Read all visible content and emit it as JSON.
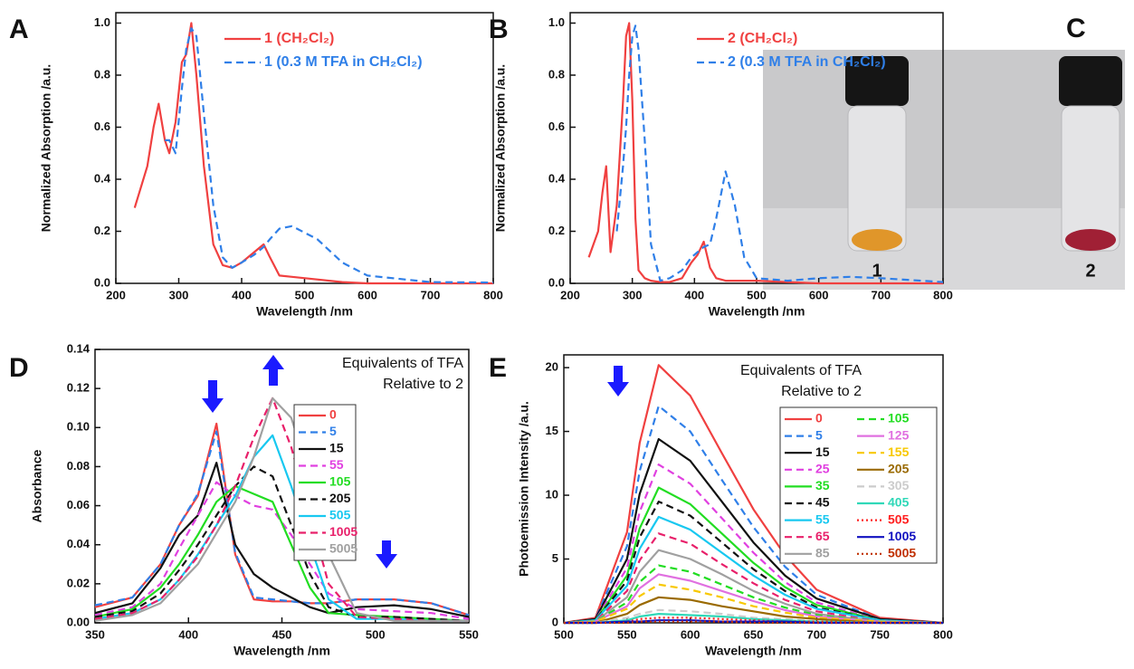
{
  "chart_data": [
    {
      "type": "line",
      "panel": "A",
      "x_label": "Wavelength /nm",
      "y_label": "Normalized Absorption /a.u.",
      "xlim": [
        200,
        800
      ],
      "ylim": [
        0,
        1.04
      ],
      "xticks": [
        200,
        300,
        400,
        500,
        600,
        700,
        800
      ],
      "yticks": [
        {
          "value": 0,
          "label": "0.0"
        },
        0.2,
        0.4,
        0.6,
        0.8,
        {
          "value": 1,
          "label": "1.0"
        }
      ],
      "x": [
        230,
        250,
        260,
        268,
        278,
        285,
        295,
        305,
        312,
        320,
        328,
        340,
        355,
        370,
        385,
        400,
        420,
        435,
        445,
        460,
        480,
        520,
        560,
        600,
        700,
        800
      ],
      "series": [
        {
          "name": "1 (CH₂Cl₂)",
          "color": "#f04040",
          "style": "solid",
          "values": [
            0.29,
            0.45,
            0.6,
            0.69,
            0.55,
            0.5,
            0.62,
            0.85,
            0.88,
            1.0,
            0.8,
            0.45,
            0.15,
            0.07,
            0.06,
            0.08,
            0.12,
            0.15,
            0.1,
            0.03,
            0.025,
            0.015,
            0.005,
            0,
            0,
            0
          ]
        },
        {
          "name": "1 (0.3 M TFA in CH₂Cl₂)",
          "color": "#2f7fe8",
          "style": "dashed",
          "values": [
            null,
            null,
            null,
            null,
            0.55,
            0.55,
            0.5,
            0.75,
            0.9,
            0.98,
            0.95,
            0.65,
            0.3,
            0.1,
            0.06,
            0.08,
            0.11,
            0.14,
            0.17,
            0.21,
            0.22,
            0.17,
            0.08,
            0.03,
            0.005,
            0.003
          ]
        }
      ]
    },
    {
      "type": "line",
      "panel": "B",
      "x_label": "Wavelength /nm",
      "y_label": "Normalized Absorption /a.u.",
      "xlim": [
        200,
        800
      ],
      "ylim": [
        0,
        1.04
      ],
      "xticks": [
        200,
        300,
        400,
        500,
        600,
        700,
        800
      ],
      "yticks": [
        {
          "value": 0,
          "label": "0.0"
        },
        0.2,
        0.4,
        0.6,
        0.8,
        {
          "value": 1,
          "label": "1.0"
        }
      ],
      "x": [
        230,
        245,
        252,
        258,
        265,
        275,
        285,
        290,
        295,
        300,
        305,
        310,
        320,
        330,
        345,
        360,
        380,
        395,
        405,
        415,
        425,
        435,
        450,
        465,
        480,
        500,
        550,
        600,
        650,
        700,
        800
      ],
      "series": [
        {
          "name": "2 (CH₂Cl₂)",
          "color": "#f04040",
          "style": "solid",
          "values": [
            0.1,
            0.2,
            0.35,
            0.45,
            0.12,
            0.3,
            0.7,
            0.95,
            1.0,
            0.7,
            0.25,
            0.05,
            0.02,
            0.01,
            0.005,
            0.005,
            0.02,
            0.08,
            0.11,
            0.16,
            0.06,
            0.02,
            0.01,
            0.01,
            0.01,
            0.01,
            0.005,
            0,
            0,
            0,
            0
          ]
        },
        {
          "name": "2 (0.3 M TFA in CH₂Cl₂)",
          "color": "#2f7fe8",
          "style": "dashed",
          "values": [
            null,
            null,
            null,
            null,
            null,
            0.2,
            0.45,
            0.6,
            0.8,
            0.95,
            0.99,
            0.9,
            0.55,
            0.15,
            0.01,
            0.02,
            0.05,
            0.1,
            0.12,
            0.14,
            0.15,
            0.25,
            0.43,
            0.3,
            0.1,
            0.02,
            0.01,
            0.02,
            0.025,
            0.02,
            0.005
          ]
        }
      ]
    },
    {
      "type": "line",
      "panel": "D",
      "x_label": "Wavelength /nm",
      "y_label": "Absorbance",
      "legend_title": [
        "Equivalents of TFA",
        "Relative to 2"
      ],
      "xlim": [
        350,
        550
      ],
      "ylim": [
        0,
        0.14
      ],
      "xticks": [
        350,
        400,
        450,
        500,
        550
      ],
      "yticks": [
        {
          "value": 0,
          "label": "0.00"
        },
        {
          "value": 0.02,
          "label": "0.02"
        },
        {
          "value": 0.04,
          "label": "0.04"
        },
        {
          "value": 0.06,
          "label": "0.06"
        },
        {
          "value": 0.08,
          "label": "0.08"
        },
        {
          "value": 0.1,
          "label": "0.10"
        },
        {
          "value": 0.12,
          "label": "0.12"
        },
        {
          "value": 0.14,
          "label": "0.14"
        }
      ],
      "x": [
        350,
        370,
        385,
        395,
        405,
        415,
        425,
        435,
        445,
        455,
        465,
        475,
        490,
        510,
        530,
        550
      ],
      "series": [
        {
          "name": "0",
          "color": "#f04040",
          "style": "solid",
          "values": [
            0.008,
            0.013,
            0.03,
            0.05,
            0.065,
            0.102,
            0.035,
            0.012,
            0.011,
            0.011,
            0.01,
            0.01,
            0.012,
            0.012,
            0.01,
            0.004
          ]
        },
        {
          "name": "5",
          "color": "#2f7fe8",
          "style": "dashed",
          "values": [
            0.009,
            0.013,
            0.03,
            0.05,
            0.066,
            0.098,
            0.036,
            0.013,
            0.012,
            0.011,
            0.01,
            0.01,
            0.012,
            0.012,
            0.01,
            0.004
          ]
        },
        {
          "name": "15",
          "color": "#111111",
          "style": "solid",
          "values": [
            0.005,
            0.01,
            0.028,
            0.045,
            0.055,
            0.082,
            0.04,
            0.025,
            0.018,
            0.013,
            0.008,
            0.005,
            0.008,
            0.009,
            0.007,
            0.003
          ]
        },
        {
          "name": "55",
          "color": "#e040e0",
          "style": "dashed",
          "values": [
            0.004,
            0.008,
            0.02,
            0.038,
            0.055,
            0.072,
            0.065,
            0.06,
            0.058,
            0.045,
            0.03,
            0.015,
            0.007,
            0.006,
            0.005,
            0.002
          ]
        },
        {
          "name": "105",
          "color": "#22dd22",
          "style": "solid",
          "values": [
            0.003,
            0.007,
            0.018,
            0.03,
            0.045,
            0.062,
            0.07,
            0.066,
            0.062,
            0.04,
            0.018,
            0.005,
            0.004,
            0.003,
            0.002,
            0.001
          ]
        },
        {
          "name": "205",
          "color": "#111111",
          "style": "dashed",
          "values": [
            0.003,
            0.006,
            0.015,
            0.027,
            0.04,
            0.055,
            0.07,
            0.08,
            0.075,
            0.05,
            0.025,
            0.008,
            0.003,
            0.003,
            0.002,
            0.001
          ]
        },
        {
          "name": "505",
          "color": "#18c8f0",
          "style": "solid",
          "values": [
            0.002,
            0.005,
            0.012,
            0.022,
            0.035,
            0.05,
            0.065,
            0.085,
            0.096,
            0.07,
            0.04,
            0.012,
            0.002,
            0.002,
            0.001,
            0.001
          ]
        },
        {
          "name": "1005",
          "color": "#e8206a",
          "style": "dashed",
          "values": [
            0.002,
            0.005,
            0.012,
            0.022,
            0.034,
            0.05,
            0.07,
            0.095,
            0.115,
            0.09,
            0.055,
            0.02,
            0.003,
            0.002,
            0.001,
            0.001
          ]
        },
        {
          "name": "5005",
          "color": "#a0a0a0",
          "style": "solid",
          "values": [
            0.001,
            0.004,
            0.01,
            0.02,
            0.03,
            0.046,
            0.062,
            0.085,
            0.115,
            0.105,
            0.075,
            0.035,
            0.005,
            0.001,
            0.001,
            0.001
          ]
        }
      ]
    },
    {
      "type": "line",
      "panel": "E",
      "x_label": "Wavelength /nm",
      "y_label": "Photoemission Intensity /a.u.",
      "legend_title": [
        "Equivalents of TFA",
        "Relative to 2"
      ],
      "xlim": [
        500,
        800
      ],
      "ylim": [
        0,
        21
      ],
      "xticks": [
        500,
        550,
        600,
        650,
        700,
        750,
        800
      ],
      "yticks": [
        0,
        5,
        10,
        15,
        20
      ],
      "x": [
        500,
        525,
        550,
        560,
        575,
        600,
        625,
        650,
        675,
        700,
        750,
        800
      ],
      "series": [
        {
          "name": "0",
          "color": "#f04040",
          "style": "solid",
          "values": [
            0,
            0.4,
            7.1,
            14.1,
            20.2,
            17.8,
            13.3,
            8.9,
            5.3,
            2.6,
            0.4,
            0
          ]
        },
        {
          "name": "5",
          "color": "#2f7fe8",
          "style": "dashed",
          "values": [
            0,
            0.3,
            6.0,
            11.9,
            17.0,
            15.0,
            11.2,
            7.5,
            4.4,
            2.2,
            0.3,
            0
          ]
        },
        {
          "name": "15",
          "color": "#111111",
          "style": "solid",
          "values": [
            0,
            0.3,
            5.0,
            10.1,
            14.4,
            12.7,
            9.5,
            6.3,
            3.7,
            1.9,
            0.3,
            0
          ]
        },
        {
          "name": "25",
          "color": "#e040e0",
          "style": "dashed",
          "values": [
            0,
            0.2,
            4.3,
            8.7,
            12.4,
            10.9,
            8.2,
            5.5,
            3.2,
            1.6,
            0.2,
            0
          ]
        },
        {
          "name": "35",
          "color": "#22dd22",
          "style": "solid",
          "values": [
            0,
            0.2,
            3.7,
            7.4,
            10.6,
            9.3,
            7.0,
            4.7,
            2.8,
            1.4,
            0.2,
            0
          ]
        },
        {
          "name": "45",
          "color": "#111111",
          "style": "dashed",
          "values": [
            0,
            0.2,
            3.3,
            6.7,
            9.5,
            8.4,
            6.3,
            4.2,
            2.5,
            1.2,
            0.2,
            0
          ]
        },
        {
          "name": "55",
          "color": "#18c8f0",
          "style": "solid",
          "values": [
            0,
            0.2,
            2.9,
            5.8,
            8.3,
            7.3,
            5.5,
            3.7,
            2.2,
            1.1,
            0.2,
            0
          ]
        },
        {
          "name": "65",
          "color": "#e8206a",
          "style": "dashed",
          "values": [
            0,
            0.1,
            2.5,
            4.9,
            7.0,
            6.2,
            4.6,
            3.1,
            1.8,
            0.9,
            0.1,
            0
          ]
        },
        {
          "name": "85",
          "color": "#a0a0a0",
          "style": "solid",
          "values": [
            0,
            0.1,
            2.0,
            4.0,
            5.7,
            5.0,
            3.8,
            2.5,
            1.5,
            0.7,
            0.1,
            0
          ]
        },
        {
          "name": "105",
          "color": "#22dd22",
          "style": "dashed",
          "values": [
            0,
            0.1,
            1.6,
            3.2,
            4.5,
            4.0,
            3.0,
            2.0,
            1.2,
            0.6,
            0.1,
            0
          ]
        },
        {
          "name": "125",
          "color": "#e070e0",
          "style": "solid",
          "values": [
            0,
            0.1,
            1.3,
            2.7,
            3.8,
            3.3,
            2.5,
            1.7,
            1.0,
            0.5,
            0.1,
            0
          ]
        },
        {
          "name": "155",
          "color": "#f8c800",
          "style": "dashed",
          "values": [
            0,
            0.1,
            1.1,
            2.1,
            3.0,
            2.6,
            2.0,
            1.3,
            0.8,
            0.4,
            0.1,
            0
          ]
        },
        {
          "name": "205",
          "color": "#9a6a00",
          "style": "solid",
          "values": [
            0,
            0,
            0.7,
            1.4,
            2.0,
            1.8,
            1.3,
            0.9,
            0.5,
            0.3,
            0,
            0
          ]
        },
        {
          "name": "305",
          "color": "#cccccc",
          "style": "dashed",
          "values": [
            0,
            0,
            0.4,
            0.7,
            1.0,
            0.9,
            0.7,
            0.4,
            0.3,
            0.1,
            0,
            0
          ]
        },
        {
          "name": "405",
          "color": "#30d8b8",
          "style": "solid",
          "values": [
            0,
            0,
            0.2,
            0.5,
            0.7,
            0.6,
            0.5,
            0.3,
            0.2,
            0.1,
            0,
            0
          ]
        },
        {
          "name": "505",
          "color": "#ff2020",
          "style": "dotted",
          "values": [
            0,
            0,
            0.1,
            0.3,
            0.4,
            0.4,
            0.3,
            0.2,
            0.1,
            0.1,
            0,
            0
          ]
        },
        {
          "name": "1005",
          "color": "#1010c0",
          "style": "solid",
          "values": [
            0,
            0,
            0.1,
            0.1,
            0.2,
            0.2,
            0.1,
            0.1,
            0.1,
            0,
            0,
            0
          ]
        },
        {
          "name": "5005",
          "color": "#c03000",
          "style": "dotted",
          "values": [
            0,
            0,
            0,
            0.1,
            0.1,
            0.1,
            0.1,
            0,
            0,
            0,
            0,
            0
          ]
        }
      ]
    }
  ],
  "photo": {
    "panel": "C",
    "labels": [
      "1",
      "2"
    ]
  }
}
